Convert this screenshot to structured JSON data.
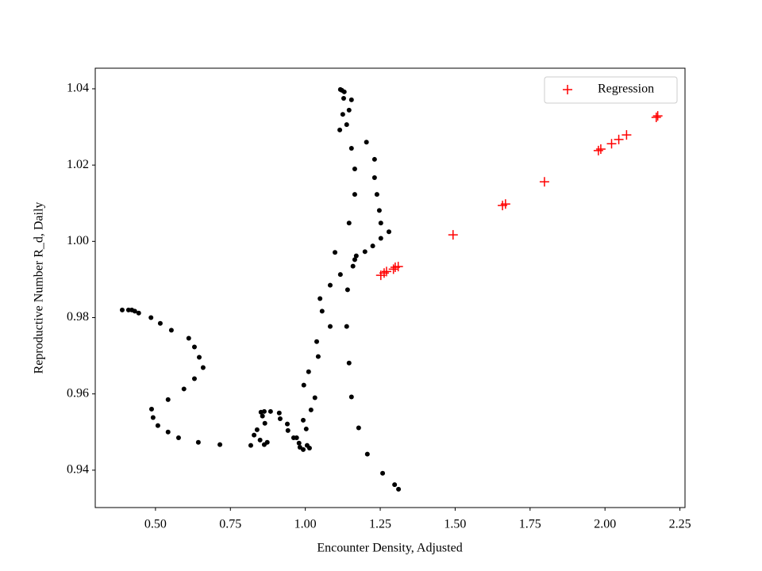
{
  "chart_data": {
    "type": "scatter",
    "x_label": "Encounter Density, Adjusted",
    "y_label": "Reproductive Number R_d, Daily",
    "xlim": [
      0.299,
      2.267
    ],
    "ylim": [
      0.9302,
      1.0454
    ],
    "xticks": [
      {
        "value": 0.5,
        "label": "0.50"
      },
      {
        "value": 0.75,
        "label": "0.75"
      },
      {
        "value": 1,
        "label": "1.00"
      },
      {
        "value": 1.25,
        "label": "1.25"
      },
      {
        "value": 1.5,
        "label": "1.50"
      },
      {
        "value": 1.75,
        "label": "1.75"
      },
      {
        "value": 2,
        "label": "2.00"
      },
      {
        "value": 2.25,
        "label": "2.25"
      }
    ],
    "yticks": [
      0.94,
      0.96,
      0.98,
      {
        "value": 1,
        "label": "1.00"
      },
      1.02,
      1.04
    ],
    "grid": false,
    "legend": "upper right",
    "series": [
      {
        "color": "#000000",
        "marker": "dot",
        "x": [
          0.389,
          0.41,
          0.421,
          0.431,
          0.444,
          0.485,
          0.516,
          0.553,
          0.611,
          0.63,
          0.646,
          0.659,
          0.63,
          0.595,
          0.542,
          0.487,
          0.492,
          0.508,
          0.542,
          0.577,
          0.643,
          0.715,
          0.818,
          0.829,
          0.839,
          0.849,
          0.863,
          0.873,
          0.852,
          0.863,
          0.857,
          0.865,
          0.884,
          0.913,
          0.916,
          0.94,
          0.942,
          0.961,
          0.971,
          0.979,
          0.982,
          0.993,
          1.006,
          1.014,
          0.993,
          1.003,
          0.995,
          1.011,
          1.019,
          1.032,
          1.038,
          1.043,
          1.049,
          1.056,
          1.083,
          1.083,
          1.099,
          1.117,
          1.138,
          1.141,
          1.146,
          1.154,
          1.159,
          1.165,
          1.17,
          1.178,
          1.146,
          1.165,
          1.165,
          1.154,
          1.138,
          1.146,
          1.154,
          1.128,
          1.117,
          1.122,
          1.13,
          1.115,
          1.125,
          1.204,
          1.231,
          1.231,
          1.239,
          1.247,
          1.252,
          1.279,
          1.252,
          1.225,
          1.199,
          1.207,
          1.258,
          1.298,
          1.311
        ],
        "values": [
          0.982,
          0.982,
          0.982,
          0.9817,
          0.9812,
          0.98,
          0.9785,
          0.9767,
          0.9746,
          0.9723,
          0.9696,
          0.9669,
          0.964,
          0.9613,
          0.9585,
          0.956,
          0.9538,
          0.9517,
          0.95,
          0.9485,
          0.9473,
          0.9467,
          0.9465,
          0.9492,
          0.9506,
          0.9479,
          0.9467,
          0.9473,
          0.9552,
          0.9554,
          0.9542,
          0.9523,
          0.9554,
          0.955,
          0.9535,
          0.9521,
          0.9504,
          0.9485,
          0.9485,
          0.9471,
          0.946,
          0.9454,
          0.9465,
          0.9458,
          0.9531,
          0.9508,
          0.9623,
          0.9658,
          0.9558,
          0.959,
          0.9737,
          0.9698,
          0.985,
          0.9817,
          0.9777,
          0.9885,
          0.9971,
          0.9913,
          0.9777,
          0.9873,
          0.9681,
          0.9592,
          0.9935,
          0.9952,
          0.9962,
          0.9511,
          1.0048,
          1.0123,
          1.019,
          1.0244,
          1.0306,
          1.0344,
          1.0371,
          1.0375,
          1.0398,
          1.0396,
          1.0392,
          1.0292,
          1.0333,
          1.026,
          1.0215,
          1.0167,
          1.0123,
          1.0081,
          1.0048,
          1.0025,
          1.0008,
          0.9988,
          0.9973,
          0.9442,
          0.9392,
          0.9362,
          0.935
        ]
      },
      {
        "name": "Regression",
        "color": "#ff0000",
        "marker": "plus",
        "x": [
          1.252,
          1.263,
          1.271,
          1.294,
          1.3,
          1.31,
          1.493,
          1.658,
          1.668,
          1.798,
          1.978,
          1.986,
          2.022,
          2.046,
          2.072,
          2.171,
          2.176
        ],
        "values": [
          0.9911,
          0.9917,
          0.9921,
          0.9927,
          0.9932,
          0.9934,
          1.0017,
          1.0094,
          1.0098,
          1.0156,
          1.0238,
          1.0242,
          1.0256,
          1.0267,
          1.0279,
          1.0325,
          1.0329
        ]
      }
    ]
  }
}
